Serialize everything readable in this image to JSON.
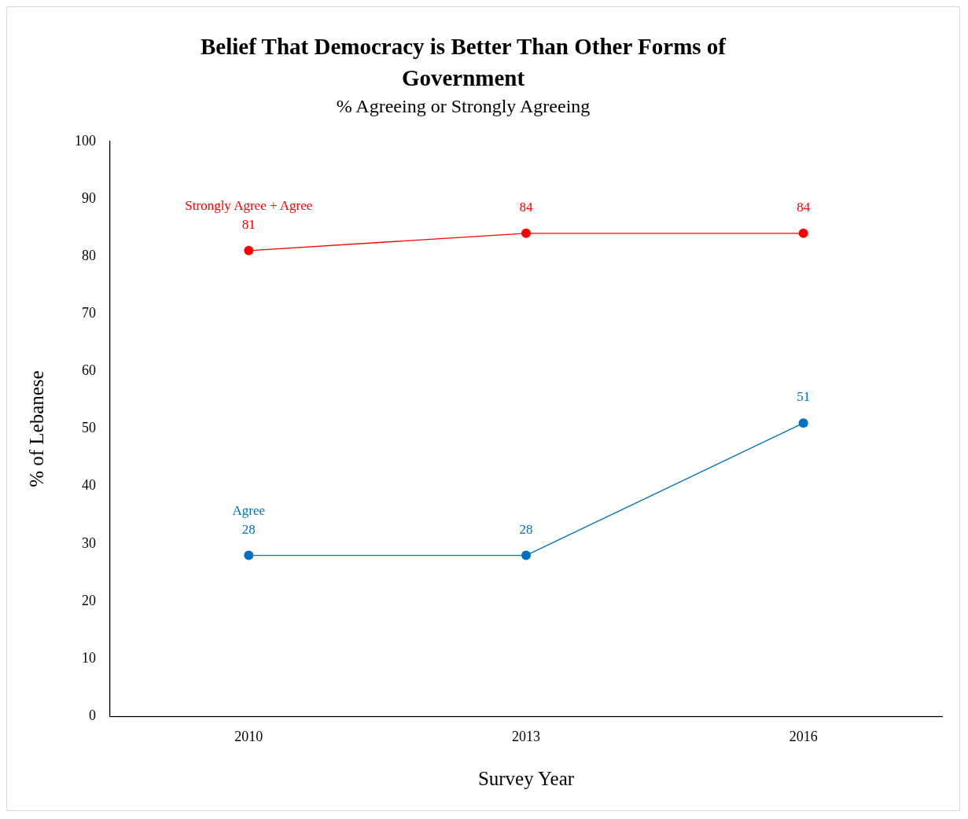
{
  "chart_data": {
    "type": "line",
    "title": "Belief That Democracy is Better Than Other Forms of Government",
    "subtitle": "% Agreeing or Strongly Agreeing",
    "xlabel": "Survey Year",
    "ylabel": "% of Lebanese",
    "categories": [
      "2010",
      "2013",
      "2016"
    ],
    "series": [
      {
        "name": "Strongly Agree + Agree",
        "color": "#ff0000",
        "values": [
          81,
          84,
          84
        ]
      },
      {
        "name": "Agree",
        "color": "#0070c0",
        "values": [
          28,
          28,
          51
        ]
      }
    ],
    "ylim": [
      0,
      100
    ],
    "yticks": [
      0,
      10,
      20,
      30,
      40,
      50,
      60,
      70,
      80,
      90,
      100
    ],
    "grid": false,
    "legend": false,
    "marker": "circle",
    "line_style": "solid",
    "data_labels": true
  }
}
